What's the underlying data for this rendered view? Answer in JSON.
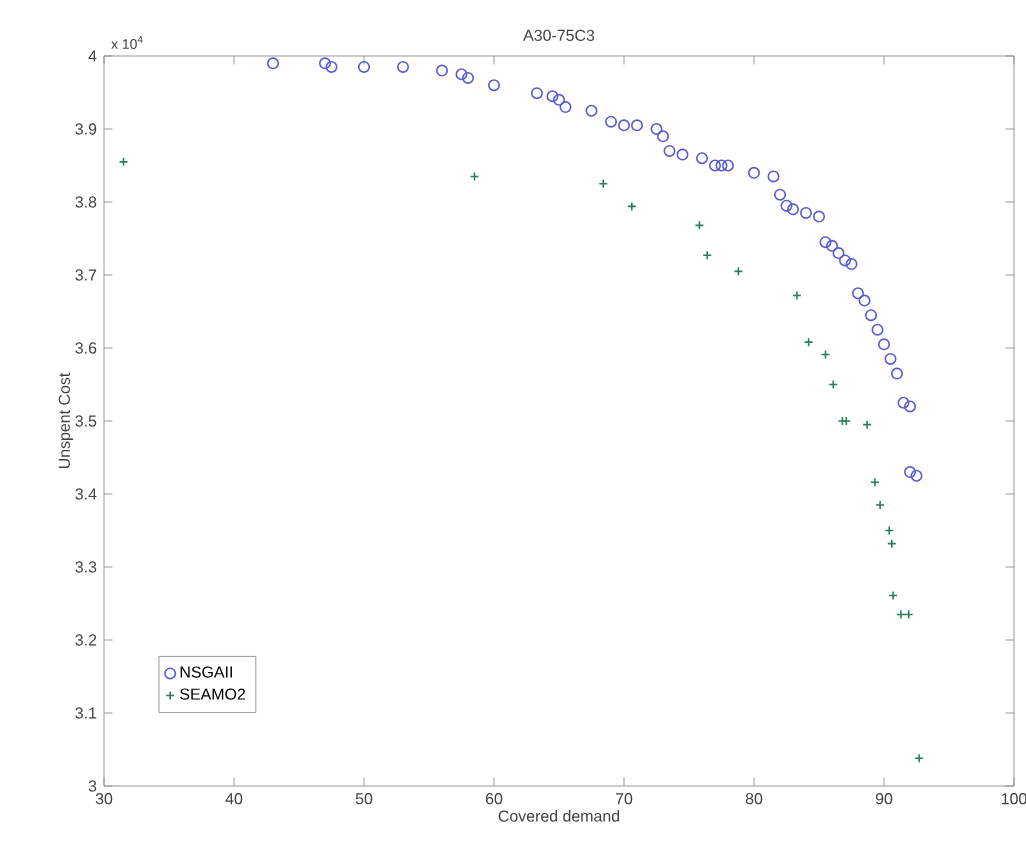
{
  "chart_data": {
    "type": "scatter",
    "title": "A30-75C3",
    "xlabel": "Covered demand",
    "ylabel": "Unspent Cost",
    "annotations": [
      "x 10$^{4}$"
    ],
    "xlim": [
      30,
      100
    ],
    "xticks": [
      30,
      40,
      50,
      60,
      70,
      80,
      90,
      100
    ],
    "ylim": [
      3,
      4
    ],
    "yticks": [
      3,
      3.1,
      3.2,
      3.3,
      3.4,
      3.5,
      3.6,
      3.7,
      3.8,
      3.9,
      4
    ],
    "grid": false,
    "legend": "bottom left",
    "series": [
      {
        "name": "NSGAII",
        "color": "#5a5ad2",
        "marker": "circle",
        "x": [
          43,
          47,
          47.5,
          50,
          53,
          56,
          57.5,
          58,
          60,
          63.3,
          64.5,
          65,
          65.5,
          67.5,
          69,
          70,
          71,
          72.5,
          73,
          73.5,
          74.5,
          76,
          77,
          77.5,
          78,
          80,
          81.5,
          82,
          82.5,
          83,
          84,
          85,
          85.5,
          86,
          86.5,
          87,
          87.5,
          88,
          88.5,
          89,
          89.5,
          90,
          90.5,
          91,
          91.5,
          92,
          92,
          92.5
        ],
        "values": [
          3.99,
          3.99,
          3.985,
          3.985,
          3.985,
          3.98,
          3.975,
          3.97,
          3.96,
          3.949,
          3.945,
          3.94,
          3.93,
          3.925,
          3.91,
          3.905,
          3.905,
          3.9,
          3.89,
          3.87,
          3.865,
          3.86,
          3.85,
          3.85,
          3.85,
          3.84,
          3.835,
          3.81,
          3.795,
          3.79,
          3.785,
          3.78,
          3.745,
          3.74,
          3.73,
          3.72,
          3.715,
          3.675,
          3.665,
          3.645,
          3.625,
          3.605,
          3.585,
          3.565,
          3.525,
          3.52,
          3.43,
          3.425
        ]
      },
      {
        "name": "SEAMO2",
        "color": "#2e7d5a",
        "marker": "cross",
        "x": [
          31.5,
          58.5,
          68.4,
          70.6,
          75.8,
          76.4,
          78.8,
          83.3,
          84.2,
          85.5,
          86.1,
          86.8,
          87.1,
          88.7,
          89.3,
          89.7,
          90.4,
          90.6,
          90.7,
          91.3,
          91.9,
          92.7
        ],
        "values": [
          3.855,
          3.835,
          3.825,
          3.794,
          3.768,
          3.727,
          3.705,
          3.672,
          3.608,
          3.591,
          3.55,
          3.5,
          3.5,
          3.495,
          3.416,
          3.385,
          3.35,
          3.332,
          3.261,
          3.235,
          3.235,
          3.038
        ]
      }
    ]
  }
}
